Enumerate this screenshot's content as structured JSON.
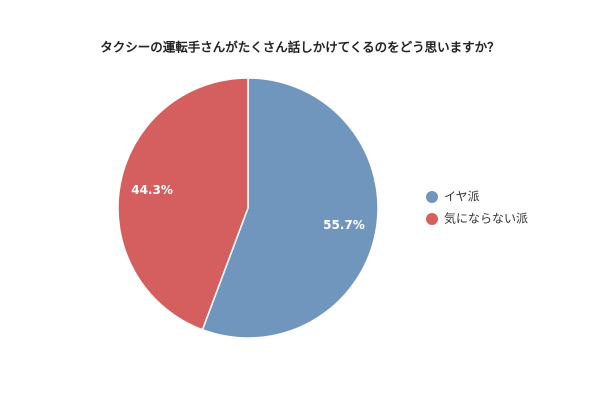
{
  "chart_data": {
    "type": "pie",
    "title": "タクシーの運転手さんがたくさん話しかけてくるのをどう思いますか？",
    "categories": [
      "イヤ派",
      "気にならない派"
    ],
    "values": [
      55.7,
      44.3
    ],
    "value_labels": [
      "55.7%",
      "44.3%"
    ],
    "colors": [
      "#7196bd",
      "#d45f5e"
    ],
    "legend": "right"
  }
}
